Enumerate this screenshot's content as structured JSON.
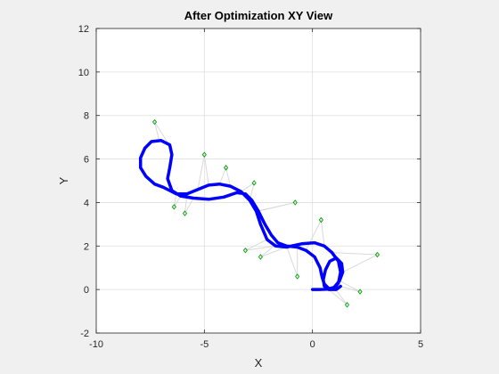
{
  "chart_data": {
    "type": "scatter",
    "title": "After Optimization XY View",
    "xlabel": "X",
    "ylabel": "Y",
    "xlim": [
      -10,
      5
    ],
    "ylim": [
      -2,
      12
    ],
    "xticks": [
      -10,
      -5,
      0,
      5
    ],
    "yticks": [
      -2,
      0,
      2,
      4,
      6,
      8,
      10,
      12
    ],
    "xtick_labels": [
      "-10",
      "-5",
      "0",
      "5"
    ],
    "ytick_labels": [
      "-2",
      "0",
      "2",
      "4",
      "6",
      "8",
      "10",
      "12"
    ],
    "grid": true,
    "colors": {
      "trajectory": "#0000ff",
      "landmark": "#00a000",
      "edge": "#d9d9d9",
      "axes_bg": "#ffffff",
      "figure_bg": "#f0f0f0",
      "grid": "#dfdfdf"
    },
    "trajectory": [
      [
        0.0,
        0.0
      ],
      [
        0.3,
        0.0
      ],
      [
        0.7,
        0.02
      ],
      [
        1.0,
        0.1
      ],
      [
        1.25,
        0.4
      ],
      [
        1.4,
        0.8
      ],
      [
        1.35,
        1.2
      ],
      [
        1.1,
        1.45
      ],
      [
        0.8,
        1.3
      ],
      [
        0.6,
        0.9
      ],
      [
        0.5,
        0.45
      ],
      [
        0.55,
        0.15
      ],
      [
        0.75,
        0.0
      ],
      [
        1.0,
        0.05
      ],
      [
        1.2,
        0.3
      ],
      [
        1.3,
        0.8
      ],
      [
        1.2,
        1.3
      ],
      [
        0.9,
        1.7
      ],
      [
        0.55,
        2.0
      ],
      [
        0.1,
        2.15
      ],
      [
        -0.5,
        2.1
      ],
      [
        -1.2,
        1.95
      ],
      [
        -1.7,
        2.0
      ],
      [
        -2.1,
        2.3
      ],
      [
        -2.4,
        3.0
      ],
      [
        -2.6,
        3.6
      ],
      [
        -2.9,
        4.1
      ],
      [
        -3.3,
        4.5
      ],
      [
        -3.8,
        4.75
      ],
      [
        -4.3,
        4.85
      ],
      [
        -4.8,
        4.8
      ],
      [
        -5.3,
        4.6
      ],
      [
        -5.8,
        4.4
      ],
      [
        -6.3,
        4.4
      ],
      [
        -6.6,
        4.55
      ],
      [
        -6.9,
        4.7
      ],
      [
        -7.3,
        4.85
      ],
      [
        -7.7,
        5.2
      ],
      [
        -7.95,
        5.6
      ],
      [
        -7.95,
        6.05
      ],
      [
        -7.75,
        6.5
      ],
      [
        -7.45,
        6.8
      ],
      [
        -7.0,
        6.85
      ],
      [
        -6.6,
        6.65
      ],
      [
        -6.5,
        6.2
      ],
      [
        -6.6,
        5.6
      ],
      [
        -6.7,
        5.1
      ],
      [
        -6.5,
        4.55
      ],
      [
        -6.1,
        4.3
      ],
      [
        -5.5,
        4.2
      ],
      [
        -4.8,
        4.15
      ],
      [
        -4.1,
        4.25
      ],
      [
        -3.5,
        4.45
      ],
      [
        -3.1,
        4.4
      ],
      [
        -2.8,
        4.1
      ],
      [
        -2.5,
        3.6
      ],
      [
        -2.2,
        3.0
      ],
      [
        -1.9,
        2.5
      ],
      [
        -1.6,
        2.15
      ],
      [
        -1.2,
        2.0
      ],
      [
        -0.7,
        1.95
      ],
      [
        -0.3,
        1.8
      ],
      [
        0.1,
        1.5
      ],
      [
        0.35,
        1.0
      ],
      [
        0.45,
        0.55
      ],
      [
        0.55,
        0.25
      ],
      [
        0.8,
        0.0
      ],
      [
        1.1,
        0.0
      ],
      [
        1.3,
        0.15
      ]
    ],
    "landmarks": [
      [
        -7.3,
        7.7
      ],
      [
        -5.0,
        6.2
      ],
      [
        -4.0,
        5.6
      ],
      [
        -2.7,
        4.9
      ],
      [
        -6.4,
        3.8
      ],
      [
        -5.9,
        3.5
      ],
      [
        -0.8,
        4.0
      ],
      [
        0.4,
        3.2
      ],
      [
        -3.1,
        1.8
      ],
      [
        -2.4,
        1.5
      ],
      [
        -0.7,
        0.6
      ],
      [
        2.2,
        -0.1
      ],
      [
        1.6,
        -0.7
      ],
      [
        3.0,
        1.6
      ]
    ],
    "edges": [
      [
        [
          -6.6,
          6.6
        ],
        [
          -7.3,
          7.7
        ]
      ],
      [
        [
          -7.1,
          6.9
        ],
        [
          -7.3,
          7.7
        ]
      ],
      [
        [
          -5.3,
          4.6
        ],
        [
          -5.0,
          6.2
        ]
      ],
      [
        [
          -4.8,
          4.8
        ],
        [
          -5.0,
          6.2
        ]
      ],
      [
        [
          -4.3,
          4.85
        ],
        [
          -4.0,
          5.6
        ]
      ],
      [
        [
          -3.8,
          4.75
        ],
        [
          -4.0,
          5.6
        ]
      ],
      [
        [
          -3.3,
          4.5
        ],
        [
          -2.7,
          4.9
        ]
      ],
      [
        [
          -2.9,
          4.1
        ],
        [
          -2.7,
          4.9
        ]
      ],
      [
        [
          -6.3,
          4.4
        ],
        [
          -6.4,
          3.8
        ]
      ],
      [
        [
          -6.1,
          4.3
        ],
        [
          -6.4,
          3.8
        ]
      ],
      [
        [
          -5.5,
          4.2
        ],
        [
          -5.9,
          3.5
        ]
      ],
      [
        [
          -5.8,
          4.4
        ],
        [
          -5.9,
          3.5
        ]
      ],
      [
        [
          -2.6,
          3.6
        ],
        [
          -0.8,
          4.0
        ]
      ],
      [
        [
          -2.5,
          3.6
        ],
        [
          -0.8,
          4.0
        ]
      ],
      [
        [
          -0.3,
          1.8
        ],
        [
          0.4,
          3.2
        ]
      ],
      [
        [
          0.55,
          2.0
        ],
        [
          0.4,
          3.2
        ]
      ],
      [
        [
          -2.1,
          2.3
        ],
        [
          -3.1,
          1.8
        ]
      ],
      [
        [
          -1.7,
          2.0
        ],
        [
          -3.1,
          1.8
        ]
      ],
      [
        [
          -1.6,
          2.15
        ],
        [
          -2.4,
          1.5
        ]
      ],
      [
        [
          -1.2,
          1.95
        ],
        [
          -2.4,
          1.5
        ]
      ],
      [
        [
          -1.2,
          2.0
        ],
        [
          -0.7,
          0.6
        ]
      ],
      [
        [
          -0.7,
          1.95
        ],
        [
          -0.7,
          0.6
        ]
      ],
      [
        [
          1.3,
          0.15
        ],
        [
          2.2,
          -0.1
        ]
      ],
      [
        [
          1.25,
          0.4
        ],
        [
          2.2,
          -0.1
        ]
      ],
      [
        [
          1.0,
          0.1
        ],
        [
          1.6,
          -0.7
        ]
      ],
      [
        [
          0.75,
          0.0
        ],
        [
          1.6,
          -0.7
        ]
      ],
      [
        [
          1.4,
          0.8
        ],
        [
          3.0,
          1.6
        ]
      ],
      [
        [
          0.9,
          1.7
        ],
        [
          3.0,
          1.6
        ]
      ]
    ]
  }
}
